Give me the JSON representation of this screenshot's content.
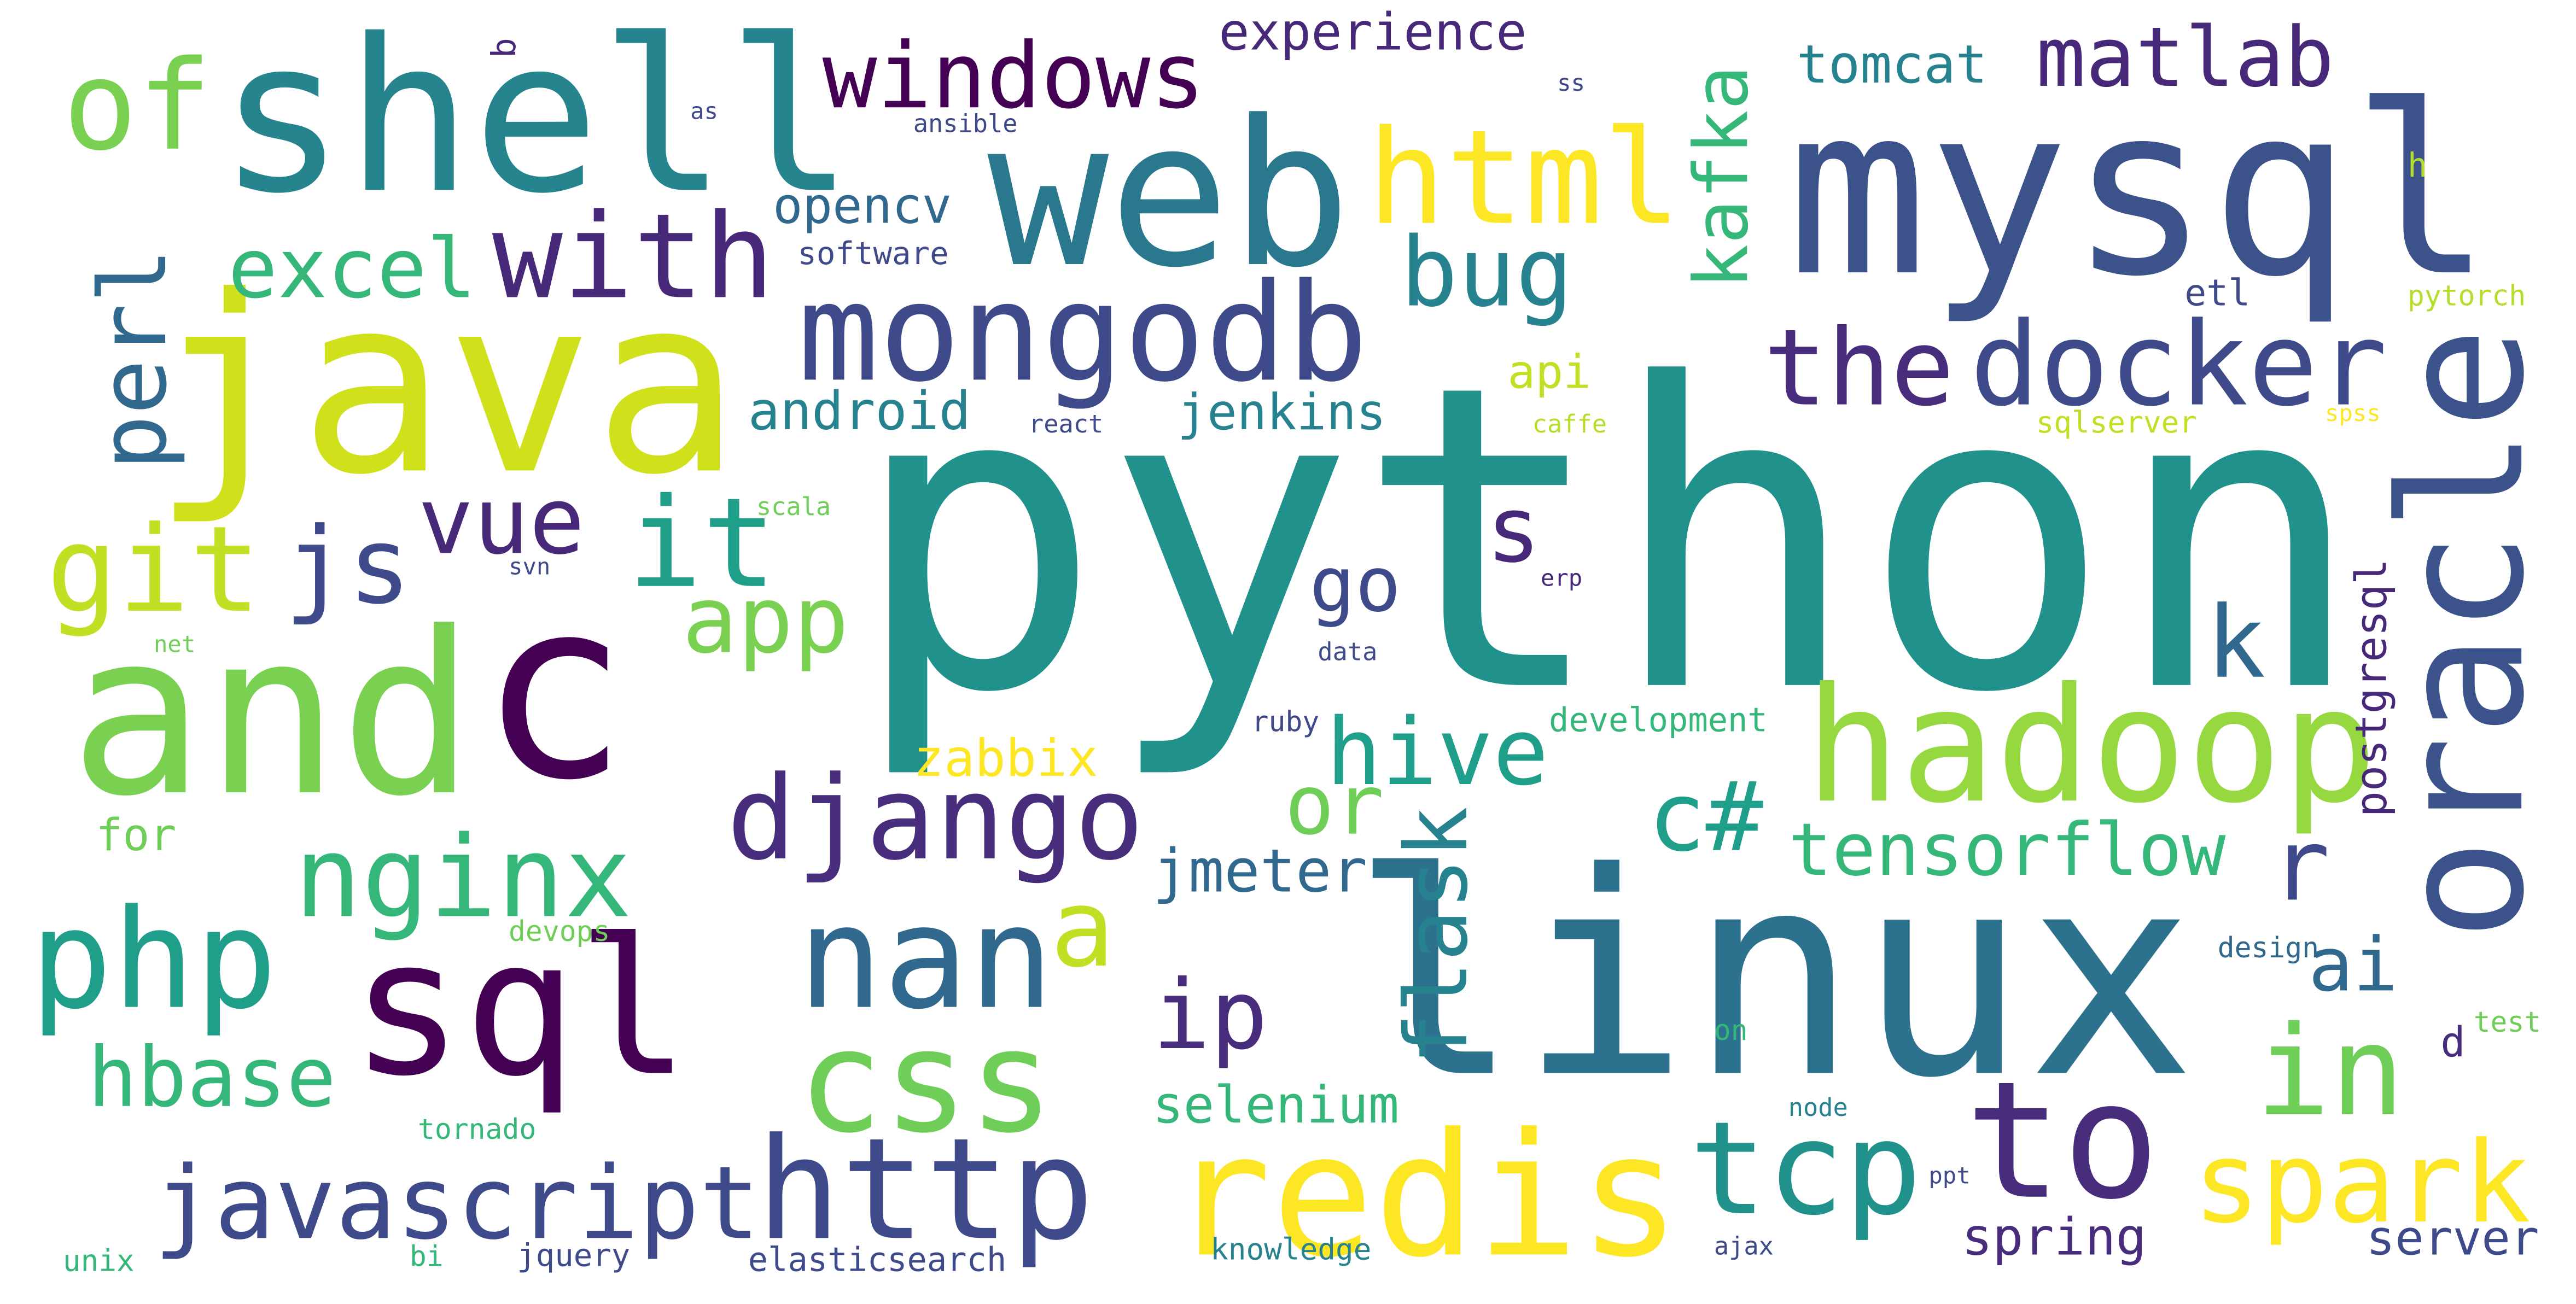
{
  "words": [
    "python",
    "linux",
    "java",
    "mysql",
    "shell",
    "web",
    "c",
    "and",
    "sql",
    "redis",
    "oracle",
    "hadoop",
    "django",
    "nan",
    "css",
    "javascript",
    "http",
    "tcp",
    "to",
    "spark",
    "in",
    "php",
    "nginx",
    "hbase",
    "mongodb",
    "windows",
    "html",
    "with",
    "excel",
    "of",
    "perl",
    "git",
    "js",
    "vue",
    "it",
    "app",
    "bug",
    "the",
    "docker",
    "matlab",
    "tomcat",
    "kafka",
    "experience",
    "hive",
    "c#",
    "tensorflow",
    "flask",
    "ip",
    "go",
    "s",
    "or",
    "a",
    "r",
    "k",
    "ai",
    "selenium",
    "spring",
    "server",
    "jmeter",
    "zabbix",
    "android",
    "jenkins",
    "opencv",
    "software",
    "api",
    "caffe",
    "react",
    "scala",
    "svn",
    "erp",
    "net",
    "data",
    "development",
    "ruby",
    "postgresql",
    "for",
    "devops",
    "design",
    "d",
    "test",
    "on",
    "node",
    "tornado",
    "ppt",
    "ajax",
    "knowledge",
    "elasticsearch",
    "jquery",
    "bi",
    "unix",
    "etl",
    "pytorch",
    "sqlserver",
    "spss",
    "h",
    "ansible",
    "as",
    "ss",
    "b"
  ]
}
